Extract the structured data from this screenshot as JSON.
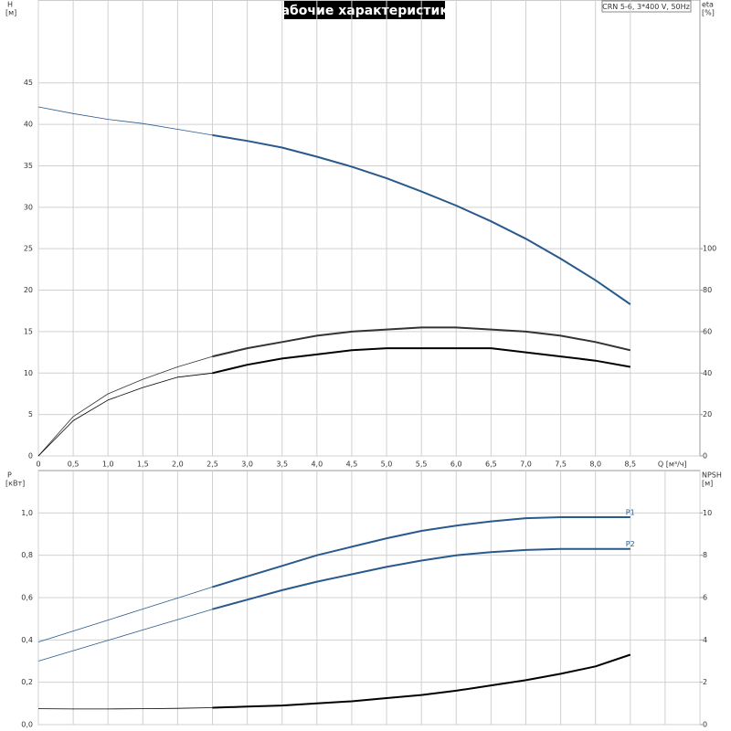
{
  "chart_data": [
    {
      "type": "line",
      "title": "Рабочие характеристики",
      "subtitle": "CRN 5-6, 3*400 V, 50Hz",
      "ylabel": [
        "H",
        "[м]"
      ],
      "y2label": [
        "eta",
        "[%]"
      ],
      "xlabel": "Q [м³/ч]",
      "x": [
        0,
        0.5,
        1,
        1.5,
        2,
        2.5,
        3,
        3.5,
        4,
        4.5,
        5,
        5.5,
        6,
        6.5,
        7,
        7.5,
        8,
        8.5
      ],
      "xlim": [
        0,
        9.5
      ],
      "xticks": [
        0,
        {
          "value": 0.5,
          "label": "0,5"
        },
        {
          "value": 1,
          "label": "1,0"
        },
        {
          "value": 1.5,
          "label": "1,5"
        },
        {
          "value": 2,
          "label": "2,0"
        },
        {
          "value": 2.5,
          "label": "2,5"
        },
        {
          "value": 3,
          "label": "3,0"
        },
        {
          "value": 3.5,
          "label": "3,5"
        },
        {
          "value": 4,
          "label": "4,0"
        },
        {
          "value": 4.5,
          "label": "4,5"
        },
        {
          "value": 5,
          "label": "5,0"
        },
        {
          "value": 5.5,
          "label": "5,5"
        },
        {
          "value": 6,
          "label": "6,0"
        },
        {
          "value": 6.5,
          "label": "6,5"
        },
        {
          "value": 7,
          "label": "7,0"
        },
        {
          "value": 7.5,
          "label": "7,5"
        },
        {
          "value": 8,
          "label": "8,0"
        },
        {
          "value": 8.5,
          "label": "8,5"
        }
      ],
      "ylim": [
        0,
        55
      ],
      "yticks": [
        0,
        5,
        10,
        15,
        20,
        25,
        30,
        35,
        40,
        45
      ],
      "y2lim": [
        0,
        220
      ],
      "y2ticks": [
        0,
        20,
        40,
        60,
        80,
        100
      ],
      "grid": true,
      "highlight_from": 2.5,
      "series": [
        {
          "color": "#2a5a8c",
          "values": [
            42.1,
            41.3,
            40.6,
            40.1,
            39.4,
            38.7,
            38.0,
            37.2,
            36.1,
            34.9,
            33.5,
            31.9,
            30.2,
            28.3,
            26.2,
            23.8,
            21.2,
            18.3
          ]
        },
        {
          "color": "#333333",
          "axis": "y2",
          "values": [
            0,
            19,
            30,
            37,
            43,
            48,
            52,
            55,
            58,
            60,
            61,
            62,
            62,
            61,
            60,
            58,
            55,
            51
          ]
        },
        {
          "color": "#000000",
          "axis": "y2",
          "values": [
            0,
            17,
            27,
            33,
            38,
            40,
            44,
            47,
            49,
            51,
            52,
            52,
            52,
            52,
            50,
            48,
            46,
            43
          ]
        }
      ]
    },
    {
      "type": "line",
      "ylabel": [
        "P",
        "[кВт]"
      ],
      "y2label": [
        "NPSH",
        "[м]"
      ],
      "x": [
        0,
        0.5,
        1,
        1.5,
        2,
        2.5,
        3,
        3.5,
        4,
        4.5,
        5,
        5.5,
        6,
        6.5,
        7,
        7.5,
        8,
        8.5
      ],
      "xlim": [
        0,
        9.5
      ],
      "xticks": [
        0,
        0.5,
        1,
        1.5,
        2,
        2.5,
        3,
        3.5,
        4,
        4.5,
        5,
        5.5,
        6,
        6.5,
        7,
        7.5,
        8,
        8.5,
        9,
        9.5
      ],
      "ylim": [
        0,
        1.2
      ],
      "yticks": [
        {
          "value": 0,
          "label": "0,0"
        },
        {
          "value": 0.2,
          "label": "0,2"
        },
        {
          "value": 0.4,
          "label": "0,4"
        },
        {
          "value": 0.6,
          "label": "0,6"
        },
        {
          "value": 0.8,
          "label": "0,8"
        },
        {
          "value": 1,
          "label": "1,0"
        }
      ],
      "y2lim": [
        0,
        12
      ],
      "y2ticks": [
        0,
        2,
        4,
        6,
        8,
        10
      ],
      "grid": true,
      "highlight_from": 2.5,
      "series": [
        {
          "name": "P1",
          "color": "#2a5a8c",
          "values": [
            0.39,
            0.442,
            0.494,
            0.546,
            0.598,
            0.65,
            0.7,
            0.75,
            0.8,
            0.84,
            0.88,
            0.915,
            0.94,
            0.96,
            0.975,
            0.98,
            0.98,
            0.98
          ]
        },
        {
          "name": "P2",
          "color": "#2a5a8c",
          "values": [
            0.3,
            0.349,
            0.398,
            0.447,
            0.496,
            0.545,
            0.59,
            0.635,
            0.675,
            0.71,
            0.745,
            0.775,
            0.8,
            0.815,
            0.825,
            0.83,
            0.83,
            0.83
          ]
        },
        {
          "color": "#000000",
          "axis": "y2",
          "values": [
            0.75,
            0.74,
            0.74,
            0.75,
            0.77,
            0.8,
            0.85,
            0.9,
            1.0,
            1.1,
            1.25,
            1.4,
            1.6,
            1.85,
            2.1,
            2.4,
            2.75,
            3.3
          ]
        }
      ]
    }
  ]
}
